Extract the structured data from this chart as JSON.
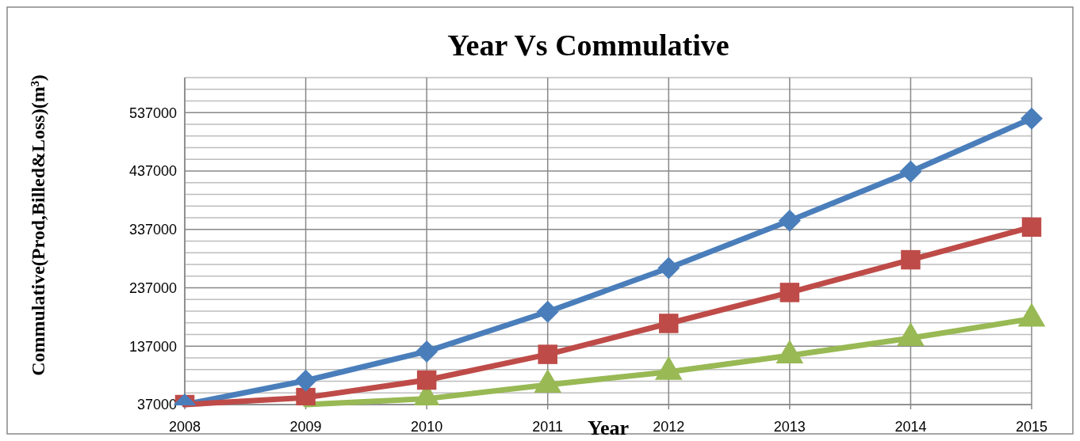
{
  "chart_data": {
    "type": "line",
    "title": "Year Vs Commulative",
    "xlabel": "Year",
    "ylabel": "Commulative(Prod,Billed&Loss)(m³)",
    "x": [
      2008,
      2009,
      2010,
      2011,
      2012,
      2013,
      2014,
      2015
    ],
    "xlim": [
      2008,
      2015
    ],
    "xticks": [
      2008,
      2009,
      2010,
      2011,
      2012,
      2013,
      2014,
      2015
    ],
    "ylim": [
      37000,
      597000
    ],
    "yticks": [
      37000,
      {
        "value": 57000,
        "label": null
      },
      {
        "value": 77000,
        "label": null
      },
      {
        "value": 97000,
        "label": null
      },
      {
        "value": 117000,
        "label": null
      },
      137000,
      {
        "value": 157000,
        "label": null
      },
      {
        "value": 177000,
        "label": null
      },
      {
        "value": 197000,
        "label": null
      },
      {
        "value": 217000,
        "label": null
      },
      237000,
      {
        "value": 257000,
        "label": null
      },
      {
        "value": 277000,
        "label": null
      },
      {
        "value": 297000,
        "label": null
      },
      {
        "value": 317000,
        "label": null
      },
      337000,
      {
        "value": 357000,
        "label": null
      },
      {
        "value": 377000,
        "label": null
      },
      {
        "value": 397000,
        "label": null
      },
      {
        "value": 417000,
        "label": null
      },
      437000,
      {
        "value": 457000,
        "label": null
      },
      {
        "value": 477000,
        "label": null
      },
      {
        "value": 497000,
        "label": null
      },
      {
        "value": 517000,
        "label": null
      },
      537000,
      {
        "value": 557000,
        "label": null
      },
      {
        "value": 577000,
        "label": null
      },
      {
        "value": 597000,
        "label": null
      }
    ],
    "grid": true,
    "legend": false,
    "line_style": "solid",
    "series": [
      {
        "color": "#4a7ebb",
        "marker": "diamond",
        "values": [
          37000,
          78000,
          128000,
          196000,
          271000,
          352000,
          436000,
          527000
        ]
      },
      {
        "color": "#be4b48",
        "marker": "square",
        "values": [
          37000,
          49000,
          79000,
          123000,
          176000,
          229000,
          285000,
          341000
        ]
      },
      {
        "color": "#98b954",
        "marker": "triangle",
        "values": [
          null,
          37000,
          47000,
          71000,
          93000,
          121000,
          151000,
          184000
        ]
      }
    ]
  }
}
